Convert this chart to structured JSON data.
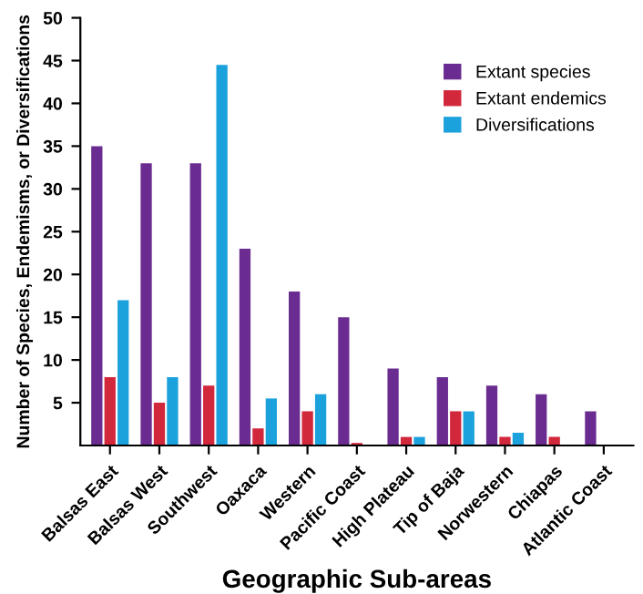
{
  "chart_data": {
    "type": "bar",
    "xlabel": "Geographic Sub-areas",
    "ylabel": "Number of Species, Endemisms, or Diversifications",
    "categories": [
      "Balsas East",
      "Balsas West",
      "Southwest",
      "Oaxaca",
      "Western",
      "Pacific Coast",
      "High Plateau",
      "Tip of Baja",
      "Norwestern",
      "Chiapas",
      "Atlantic Coast"
    ],
    "series": [
      {
        "name": "Extant species",
        "color": "#6a2c91",
        "values": [
          35,
          33,
          33,
          23,
          18,
          15,
          9,
          8,
          7,
          6,
          4
        ]
      },
      {
        "name": "Extant endemics",
        "color": "#d2283c",
        "values": [
          8,
          5,
          7,
          2,
          4,
          0.3,
          1,
          4,
          1,
          1,
          null
        ]
      },
      {
        "name": "Diversifications",
        "color": "#1ba1dc",
        "values": [
          17,
          8,
          44.5,
          5.5,
          6,
          null,
          1,
          4,
          1.5,
          null,
          null
        ]
      }
    ],
    "ylim": [
      0,
      50
    ],
    "yticks": [
      5,
      10,
      15,
      20,
      25,
      30,
      35,
      40,
      45,
      50
    ],
    "grid": false,
    "legend": "top right"
  }
}
